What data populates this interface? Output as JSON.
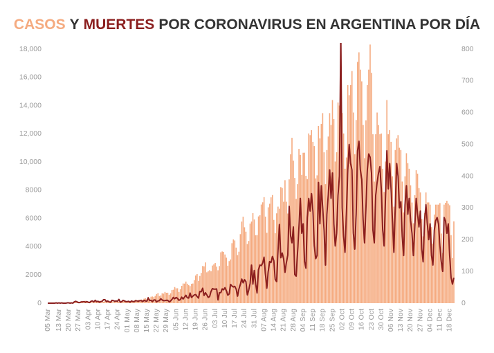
{
  "chart_data": {
    "type": "bar-line",
    "title": [
      "Y",
      "POR CORONAVIRUS EN ARGENTINA POR DÍA"
    ],
    "categories": [
      "05 Mar",
      null,
      null,
      null,
      null,
      null,
      null,
      null,
      "13 Mar",
      null,
      null,
      null,
      null,
      null,
      null,
      "20 Mar",
      null,
      null,
      null,
      null,
      null,
      null,
      "27 Mar",
      null,
      null,
      null,
      null,
      null,
      null,
      "03 Apr",
      null,
      null,
      null,
      null,
      null,
      null,
      "10 Apr",
      null,
      null,
      null,
      null,
      null,
      null,
      "17 Apr",
      null,
      null,
      null,
      null,
      null,
      null,
      "24 Apr",
      null,
      null,
      null,
      null,
      null,
      null,
      "01 May",
      null,
      null,
      null,
      null,
      null,
      null,
      "08 May",
      null,
      null,
      null,
      null,
      null,
      null,
      "15 May",
      null,
      null,
      null,
      null,
      null,
      null,
      "22 May",
      null,
      null,
      null,
      null,
      null,
      null,
      "29 May",
      null,
      null,
      null,
      null,
      null,
      null,
      "05 Jun",
      null,
      null,
      null,
      null,
      null,
      null,
      "12 Jun",
      null,
      null,
      null,
      null,
      null,
      null,
      "19 Jun",
      null,
      null,
      null,
      null,
      null,
      null,
      "26 Jun",
      null,
      null,
      null,
      null,
      null,
      null,
      "03 Jul",
      null,
      null,
      null,
      null,
      null,
      null,
      "10 Jul",
      null,
      null,
      null,
      null,
      null,
      null,
      "17 Jul",
      null,
      null,
      null,
      null,
      null,
      null,
      "24 Jul",
      null,
      null,
      null,
      null,
      null,
      null,
      "31 Jul",
      null,
      null,
      null,
      null,
      null,
      null,
      "07 Aug",
      null,
      null,
      null,
      null,
      null,
      null,
      "14 Aug",
      null,
      null,
      null,
      null,
      null,
      null,
      "21 Aug",
      null,
      null,
      null,
      null,
      null,
      null,
      "28 Aug",
      null,
      null,
      null,
      null,
      null,
      null,
      "04 Sep",
      null,
      null,
      null,
      null,
      null,
      null,
      "11 Sep",
      null,
      null,
      null,
      null,
      null,
      null,
      "18 Sep",
      null,
      null,
      null,
      null,
      null,
      null,
      "25 Sep",
      null,
      null,
      null,
      null,
      null,
      null,
      "02 Oct",
      null,
      null,
      null,
      null,
      null,
      null,
      "09 Oct",
      null,
      null,
      null,
      null,
      null,
      null,
      "16 Oct",
      null,
      null,
      null,
      null,
      null,
      null,
      "23 Oct",
      null,
      null,
      null,
      null,
      null,
      null,
      "30 Oct",
      null,
      null,
      null,
      null,
      null,
      null,
      "06 Nov",
      null,
      null,
      null,
      null,
      null,
      null,
      "13 Nov",
      null,
      null,
      null,
      null,
      null,
      null,
      "20 Nov",
      null,
      null,
      null,
      null,
      null,
      null,
      "27 Nov",
      null,
      null,
      null,
      null,
      null,
      null,
      "04 Dec",
      null,
      null,
      null,
      null,
      null,
      null,
      "11 Dec",
      null,
      null,
      null,
      null,
      null,
      null,
      "18 Dec",
      null,
      null,
      null
    ],
    "series": [
      {
        "name": "CASOS",
        "color": "#f5ab80",
        "values": [
          1,
          1,
          2,
          0,
          3,
          5,
          4,
          10,
          3,
          3,
          11,
          11,
          9,
          14,
          31,
          30,
          67,
          41,
          35,
          36,
          87,
          115,
          101,
          55,
          75,
          146,
          54,
          167,
          98,
          88,
          101,
          93,
          58,
          132,
          115,
          96,
          81,
          167,
          89,
          102,
          98,
          145,
          124,
          75,
          163,
          102,
          142,
          78,
          144,
          111,
          173,
          111,
          111,
          91,
          124,
          158,
          143,
          102,
          117,
          108,
          167,
          168,
          187,
          241,
          179,
          240,
          165,
          259,
          236,
          316,
          345,
          285,
          431,
          308,
          456,
          474,
          428,
          512,
          648,
          718,
          504,
          552,
          702,
          677,
          795,
          736,
          741,
          593,
          700,
          929,
          949,
          1141,
          1052,
          1055,
          795,
          983,
          1226,
          1393,
          1386,
          1531,
          1379,
          1281,
          1208,
          1374,
          1393,
          1634,
          1958,
          2060,
          1581,
          1927,
          2146,
          2635,
          2606,
          2886,
          2189,
          2262,
          2335,
          2262,
          2667,
          2744,
          2845,
          2590,
          2331,
          2632,
          3604,
          3663,
          3632,
          3449,
          3223,
          2657,
          2979,
          3099,
          4250,
          4518,
          4442,
          3937,
          3407,
          3645,
          4890,
          5782,
          6127,
          5376,
          5064,
          4190,
          4406,
          5641,
          5782,
          6377,
          5929,
          4814,
          4824,
          6147,
          6231,
          6986,
          7147,
          7513,
          6134,
          4985,
          6792,
          7043,
          7498,
          7663,
          5899,
          4964,
          6365,
          6840,
          6693,
          8225,
          8159,
          7187,
          8713,
          7187,
          6352,
          8771,
          10550,
          11717,
          10104,
          8872,
          7391,
          8431,
          10933,
          10504,
          9090,
          10657,
          10661,
          9026,
          8790,
          12027,
          11905,
          12259,
          11432,
          11129,
          8841,
          9056,
          12560,
          11674,
          12701,
          13467,
          10689,
          8431,
          10850,
          11807,
          13467,
          12625,
          14392,
          13041,
          10035,
          10696,
          14217,
          14001,
          14001,
          13477,
          12025,
          9524,
          10324,
          15454,
          14740,
          15454,
          16447,
          13510,
          10561,
          12982,
          17096,
          17777,
          16546,
          15718,
          12623,
          10276,
          12953,
          15454,
          16546,
          18326,
          16325,
          11968,
          8615,
          11968,
          13510,
          12623,
          11968,
          12025,
          9524,
          7878,
          10035,
          14392,
          11968,
          12259,
          11432,
          8990,
          6840,
          10850,
          11674,
          11905,
          11010,
          10850,
          8615,
          6431,
          8990,
          10624,
          9920,
          9524,
          8353,
          7132,
          5662,
          7649,
          9420,
          9178,
          8152,
          7846,
          5962,
          4734,
          6380,
          7845,
          7138,
          7139,
          6980,
          5386,
          4219,
          6280,
          6982,
          6982,
          6981,
          7092,
          4932,
          3558,
          6981,
          7114,
          7255,
          7051,
          6940,
          4820,
          3200,
          5800
        ]
      },
      {
        "name": "MUERTES",
        "color": "#8b1f1f",
        "axis": "y2",
        "values": [
          0,
          0,
          0,
          0,
          0,
          0,
          1,
          0,
          1,
          0,
          1,
          0,
          0,
          0,
          1,
          1,
          0,
          1,
          0,
          4,
          6,
          4,
          2,
          2,
          4,
          4,
          5,
          3,
          5,
          3,
          2,
          6,
          7,
          4,
          9,
          5,
          6,
          3,
          5,
          6,
          11,
          11,
          5,
          7,
          4,
          3,
          9,
          8,
          6,
          7,
          6,
          12,
          3,
          5,
          9,
          7,
          5,
          5,
          6,
          3,
          7,
          5,
          5,
          8,
          7,
          6,
          8,
          8,
          5,
          9,
          7,
          6,
          17,
          8,
          9,
          5,
          10,
          10,
          4,
          7,
          8,
          14,
          10,
          8,
          8,
          9,
          9,
          4,
          7,
          12,
          18,
          14,
          18,
          15,
          9,
          11,
          19,
          13,
          19,
          25,
          17,
          16,
          32,
          18,
          22,
          26,
          27,
          21,
          16,
          37,
          36,
          47,
          24,
          33,
          26,
          18,
          21,
          37,
          46,
          44,
          44,
          45,
          10,
          33,
          33,
          45,
          42,
          49,
          39,
          25,
          29,
          59,
          54,
          51,
          53,
          44,
          22,
          45,
          59,
          76,
          64,
          74,
          68,
          26,
          41,
          62,
          120,
          60,
          103,
          60,
          32,
          105,
          120,
          118,
          126,
          145,
          91,
          47,
          100,
          131,
          128,
          147,
          134,
          75,
          68,
          165,
          248,
          143,
          158,
          140,
          97,
          128,
          151,
          305,
          212,
          190,
          240,
          90,
          85,
          160,
          240,
          330,
          220,
          250,
          130,
          110,
          270,
          330,
          290,
          345,
          290,
          180,
          140,
          150,
          380,
          250,
          370,
          300,
          230,
          120,
          280,
          340,
          420,
          330,
          410,
          250,
          180,
          220,
          340,
          400,
          850,
          300,
          210,
          160,
          280,
          420,
          500,
          440,
          420,
          220,
          170,
          280,
          480,
          510,
          420,
          390,
          260,
          190,
          300,
          420,
          470,
          460,
          410,
          230,
          190,
          340,
          380,
          410,
          430,
          360,
          230,
          180,
          330,
          480,
          360,
          440,
          360,
          260,
          160,
          300,
          440,
          400,
          300,
          320,
          210,
          150,
          310,
          370,
          280,
          330,
          260,
          220,
          150,
          240,
          330,
          280,
          240,
          290,
          170,
          130,
          260,
          310,
          250,
          200,
          250,
          150,
          120,
          230,
          260,
          270,
          250,
          180,
          130,
          100,
          270,
          260,
          220,
          250,
          150,
          80,
          60,
          80
        ]
      }
    ],
    "ylim": [
      0,
      18000
    ],
    "yticks": [
      0,
      2000,
      4000,
      6000,
      8000,
      {
        "value": 10000,
        "label": "10,000"
      },
      {
        "value": 12000,
        "label": "12,000"
      },
      {
        "value": 14000,
        "label": "14,000"
      },
      {
        "value": 16000,
        "label": "16,000"
      },
      {
        "value": 18000,
        "label": "18,000"
      }
    ],
    "y2lim": [
      0,
      800
    ],
    "y2ticks": [
      0,
      100,
      200,
      300,
      400,
      500,
      600,
      700,
      800
    ]
  }
}
